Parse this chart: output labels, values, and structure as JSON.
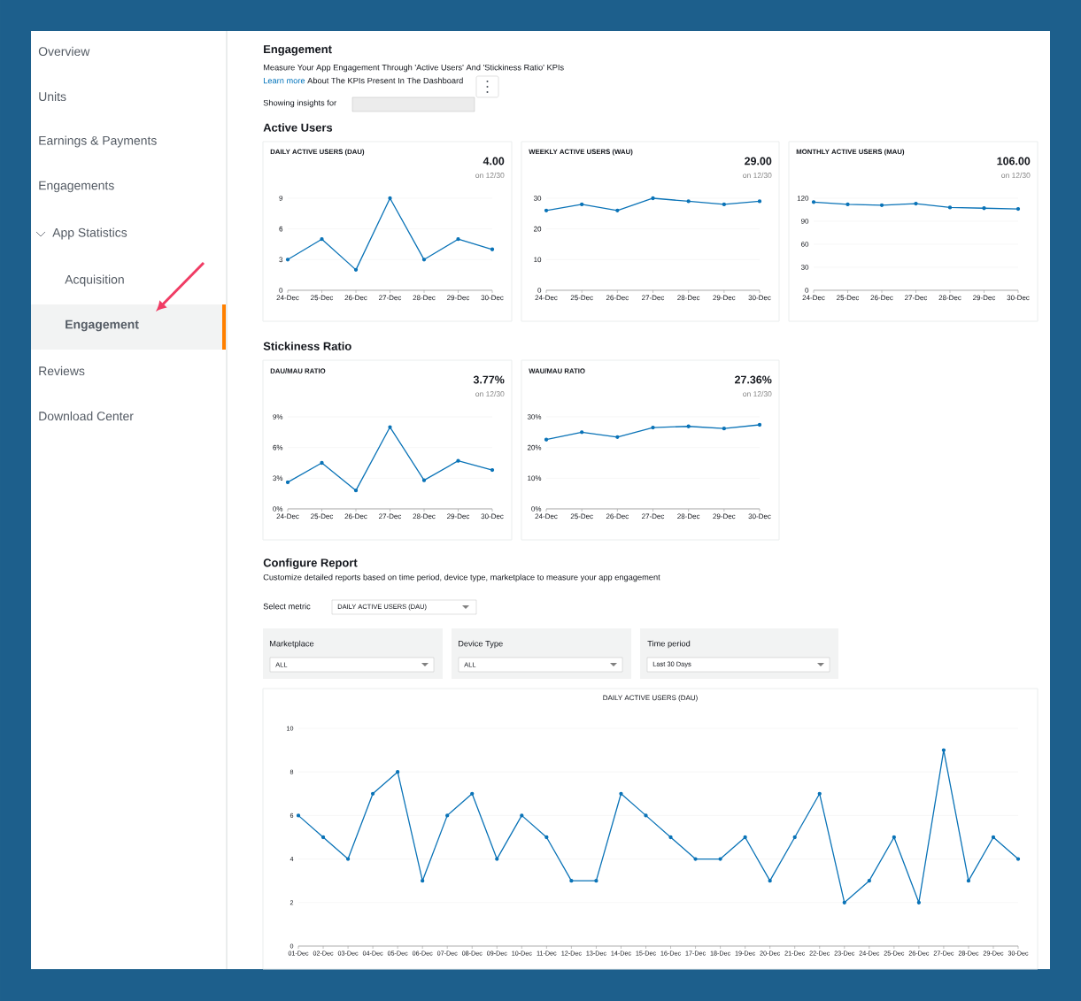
{
  "chart_data": [
    {
      "type": "other",
      "annotations": [
        "Overview",
        "Units",
        "Earnings & Payments",
        "Engagements",
        "App Statistics",
        "Acquisition",
        "Engagement",
        "Reviews",
        "Download Center",
        "Engagement",
        "Measure Your App Engagement Through 'Active Users' And 'Stickiness Ratio' KPIs",
        "Learn more",
        "About The KPIs Present In The Dashboard",
        "Showing insights for",
        "Active Users",
        "Stickiness Ratio",
        "Configure Report",
        "Customize detailed reports based on time period, device type, marketplace to measure your app engagement",
        "Select metric",
        "DAILY ACTIVE USERS (DAU)",
        "Marketplace",
        "ALL",
        "Device Type",
        "ALL",
        "Time period",
        "Last 30 Days"
      ]
    },
    {
      "type": "line",
      "title": "DAILY ACTIVE USERS (DAU)",
      "annotations": [
        "4.00",
        "on 12/30"
      ],
      "categories": [
        "24-Dec",
        "25-Dec",
        "26-Dec",
        "27-Dec",
        "28-Dec",
        "29-Dec",
        "30-Dec"
      ],
      "values": [
        3,
        5,
        2,
        9,
        3,
        5,
        4
      ],
      "color": "#0a73b7",
      "ylim": [
        0,
        9
      ],
      "yticks": [
        0,
        3,
        6,
        9
      ],
      "grid": "y",
      "marker": "circle"
    },
    {
      "type": "line",
      "title": "WEEKLY ACTIVE USERS (WAU)",
      "annotations": [
        "29.00",
        "on 12/30"
      ],
      "categories": [
        "24-Dec",
        "25-Dec",
        "26-Dec",
        "27-Dec",
        "28-Dec",
        "29-Dec",
        "30-Dec"
      ],
      "values": [
        26,
        28,
        26,
        30,
        29,
        28,
        29
      ],
      "color": "#0a73b7",
      "ylim": [
        0,
        30
      ],
      "yticks": [
        0,
        10,
        20,
        30
      ],
      "grid": "y",
      "marker": "circle"
    },
    {
      "type": "line",
      "title": "MONTHLY ACTIVE USERS (MAU)",
      "annotations": [
        "106.00",
        "on 12/30"
      ],
      "categories": [
        "24-Dec",
        "25-Dec",
        "26-Dec",
        "27-Dec",
        "28-Dec",
        "29-Dec",
        "30-Dec"
      ],
      "values": [
        115,
        112,
        111,
        113,
        108,
        107,
        106
      ],
      "color": "#0a73b7",
      "ylim": [
        0,
        120
      ],
      "yticks": [
        0,
        30,
        60,
        90,
        120
      ],
      "grid": "y",
      "marker": "circle"
    },
    {
      "type": "line",
      "title": "DAU/MAU RATIO",
      "annotations": [
        "3.77%",
        "on 12/30"
      ],
      "categories": [
        "24-Dec",
        "25-Dec",
        "26-Dec",
        "27-Dec",
        "28-Dec",
        "29-Dec",
        "30-Dec"
      ],
      "values": [
        2.6,
        4.5,
        1.8,
        8.0,
        2.8,
        4.7,
        3.8
      ],
      "color": "#0a73b7",
      "ylim": [
        0,
        9
      ],
      "yticks": [
        {
          "value": 0,
          "label": "0%"
        },
        {
          "value": 3,
          "label": "3%"
        },
        {
          "value": 6,
          "label": "6%"
        },
        {
          "value": 9,
          "label": "9%"
        }
      ],
      "grid": "y",
      "marker": "circle"
    },
    {
      "type": "line",
      "title": "WAU/MAU RATIO",
      "annotations": [
        "27.36%",
        "on 12/30"
      ],
      "categories": [
        "24-Dec",
        "25-Dec",
        "26-Dec",
        "27-Dec",
        "28-Dec",
        "29-Dec",
        "30-Dec"
      ],
      "values": [
        22.6,
        25.0,
        23.4,
        26.5,
        26.9,
        26.2,
        27.4
      ],
      "color": "#0a73b7",
      "ylim": [
        0,
        30
      ],
      "yticks": [
        {
          "value": 0,
          "label": "0%"
        },
        {
          "value": 10,
          "label": "10%"
        },
        {
          "value": 20,
          "label": "20%"
        },
        {
          "value": 30,
          "label": "30%"
        }
      ],
      "grid": "y",
      "marker": "circle"
    },
    {
      "type": "line",
      "title": "DAILY ACTIVE USERS (DAU)",
      "categories": [
        "01-Dec",
        "02-Dec",
        "03-Dec",
        "04-Dec",
        "05-Dec",
        "06-Dec",
        "07-Dec",
        "08-Dec",
        "09-Dec",
        "10-Dec",
        "11-Dec",
        "12-Dec",
        "13-Dec",
        "14-Dec",
        "15-Dec",
        "16-Dec",
        "17-Dec",
        "18-Dec",
        "19-Dec",
        "20-Dec",
        "21-Dec",
        "22-Dec",
        "23-Dec",
        "24-Dec",
        "25-Dec",
        "26-Dec",
        "27-Dec",
        "28-Dec",
        "29-Dec",
        "30-Dec"
      ],
      "values": [
        6,
        5,
        4,
        7,
        8,
        3,
        6,
        7,
        4,
        6,
        5,
        3,
        3,
        7,
        6,
        5,
        4,
        4,
        5,
        3,
        5,
        7,
        2,
        3,
        5,
        2,
        9,
        3,
        5,
        4
      ],
      "color": "#0a73b7",
      "ylim": [
        0,
        10
      ],
      "yticks": [
        0,
        2,
        4,
        6,
        8,
        10
      ],
      "grid": "y",
      "marker": "circle"
    }
  ]
}
